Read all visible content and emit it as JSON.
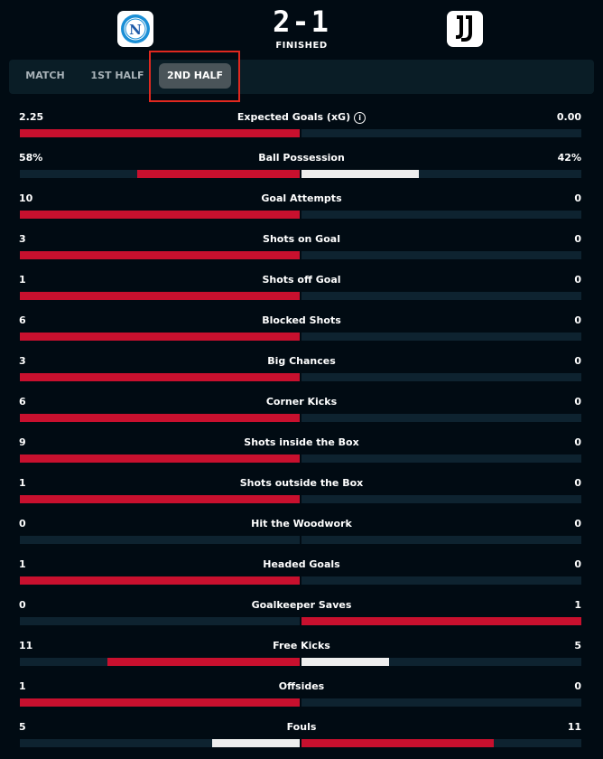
{
  "match": {
    "home_team": "Napoli",
    "away_team": "Juventus",
    "home_crest_letter": "N",
    "score": "2-1",
    "status": "FINISHED"
  },
  "tabs": [
    {
      "label": "MATCH",
      "active": false
    },
    {
      "label": "1ST HALF",
      "active": false
    },
    {
      "label": "2ND HALF",
      "active": true
    }
  ],
  "colors": {
    "background": "#010b13",
    "bar_track": "#0e2330",
    "bar_leader": "#c8102e",
    "bar_trailer": "#eeeeee",
    "highlight_box": "#e0281f"
  },
  "stats": [
    {
      "label": "Expected Goals (xG)",
      "home": "2.25",
      "away": "0.00",
      "home_share": 1.0,
      "away_share": 0.0,
      "info_icon": true
    },
    {
      "label": "Ball Possession",
      "home": "58%",
      "away": "42%",
      "home_share": 0.58,
      "away_share": 0.42
    },
    {
      "label": "Goal Attempts",
      "home": "10",
      "away": "0",
      "home_share": 1.0,
      "away_share": 0.0
    },
    {
      "label": "Shots on Goal",
      "home": "3",
      "away": "0",
      "home_share": 1.0,
      "away_share": 0.0
    },
    {
      "label": "Shots off Goal",
      "home": "1",
      "away": "0",
      "home_share": 1.0,
      "away_share": 0.0
    },
    {
      "label": "Blocked Shots",
      "home": "6",
      "away": "0",
      "home_share": 1.0,
      "away_share": 0.0
    },
    {
      "label": "Big Chances",
      "home": "3",
      "away": "0",
      "home_share": 1.0,
      "away_share": 0.0
    },
    {
      "label": "Corner Kicks",
      "home": "6",
      "away": "0",
      "home_share": 1.0,
      "away_share": 0.0
    },
    {
      "label": "Shots inside the Box",
      "home": "9",
      "away": "0",
      "home_share": 1.0,
      "away_share": 0.0
    },
    {
      "label": "Shots outside the Box",
      "home": "1",
      "away": "0",
      "home_share": 1.0,
      "away_share": 0.0
    },
    {
      "label": "Hit the Woodwork",
      "home": "0",
      "away": "0",
      "home_share": 0.0,
      "away_share": 0.0
    },
    {
      "label": "Headed Goals",
      "home": "1",
      "away": "0",
      "home_share": 1.0,
      "away_share": 0.0
    },
    {
      "label": "Goalkeeper Saves",
      "home": "0",
      "away": "1",
      "home_share": 0.0,
      "away_share": 1.0
    },
    {
      "label": "Free Kicks",
      "home": "11",
      "away": "5",
      "home_share": 0.6875,
      "away_share": 0.3125
    },
    {
      "label": "Offsides",
      "home": "1",
      "away": "0",
      "home_share": 1.0,
      "away_share": 0.0
    },
    {
      "label": "Fouls",
      "home": "5",
      "away": "11",
      "home_share": 0.3125,
      "away_share": 0.6875
    }
  ]
}
